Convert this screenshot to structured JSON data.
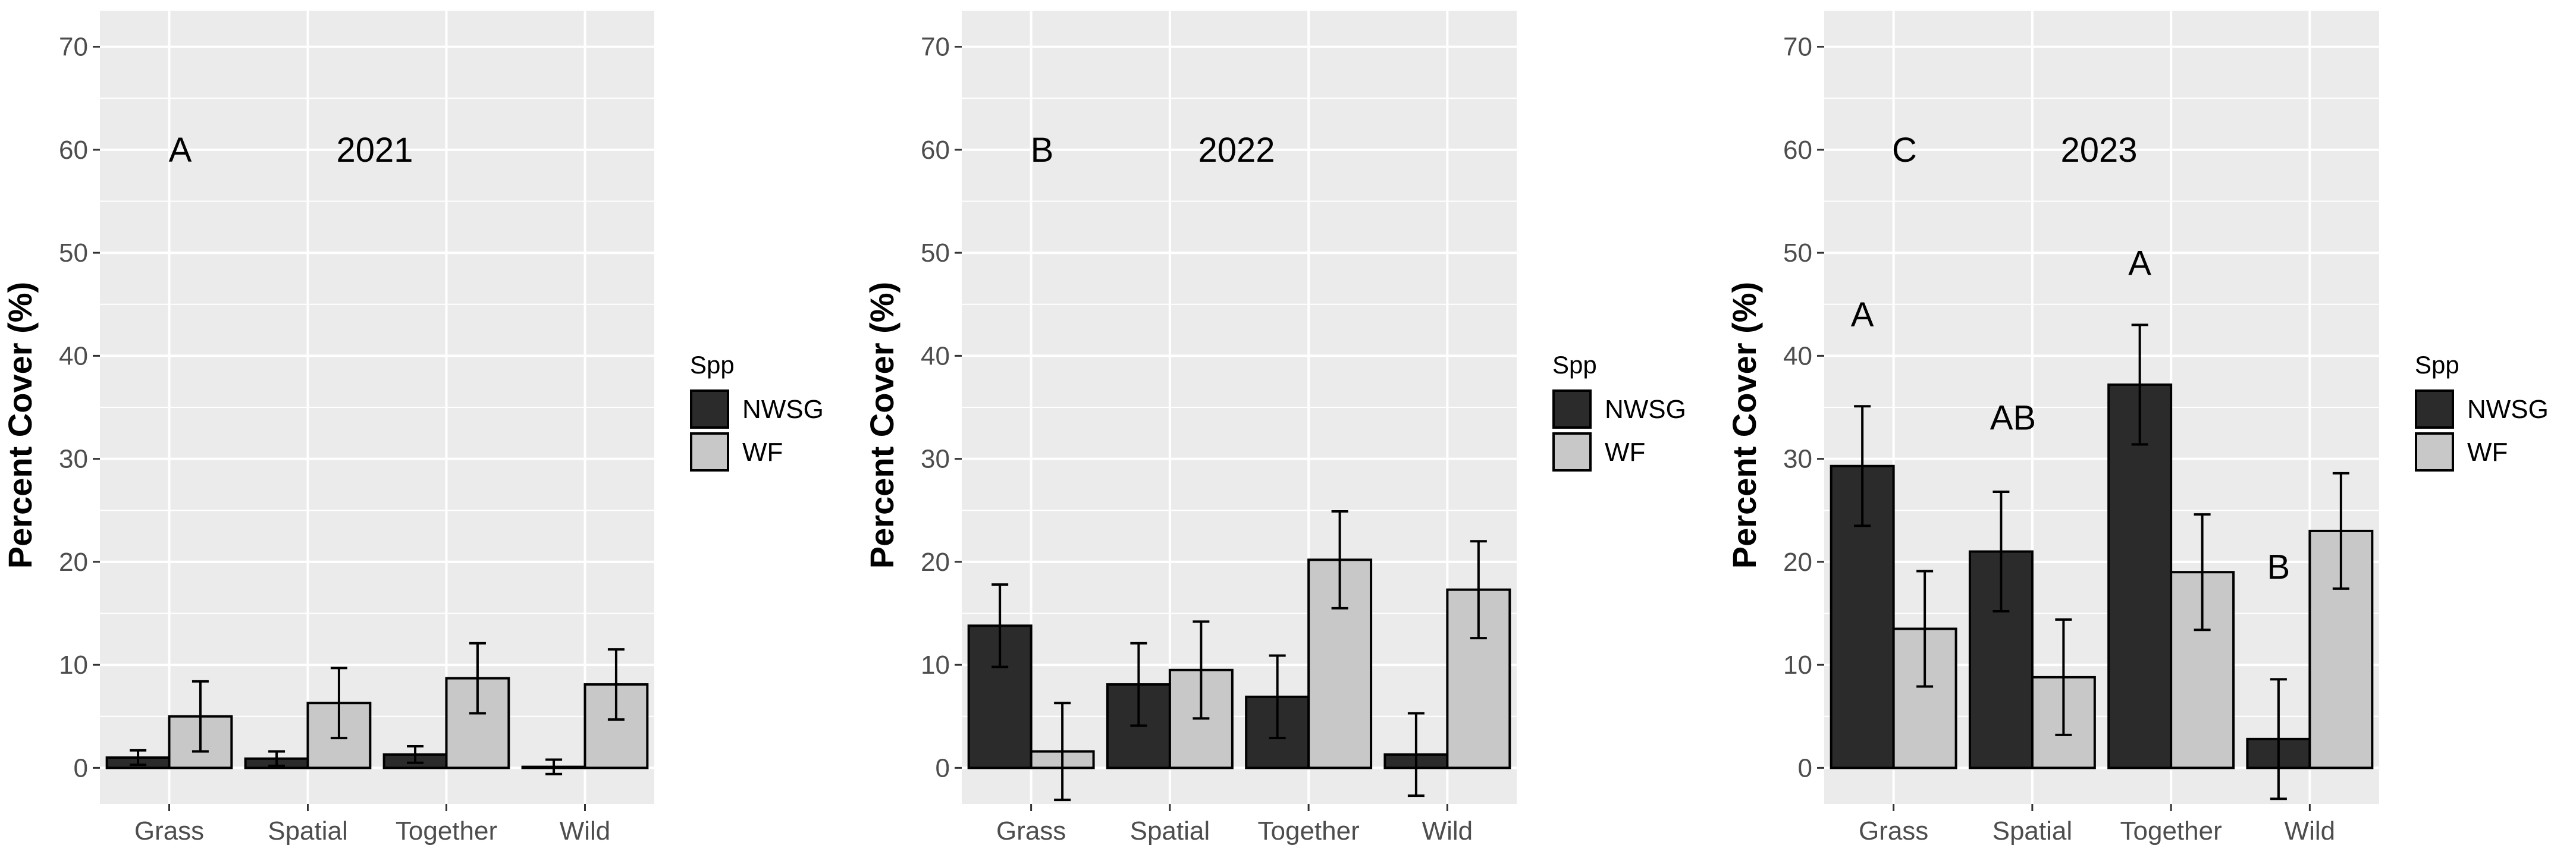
{
  "figure": {
    "legend_title": "Spp",
    "series_names": [
      "NWSG",
      "WF"
    ],
    "colors": {
      "NWSG": "#2b2b2b",
      "WF": "#c8c8c8",
      "panel_bg": "#ebebeb",
      "grid": "#ffffff",
      "text": "#000000",
      "tick_text": "#4d4d4d"
    }
  },
  "chart_data": [
    {
      "type": "bar",
      "panel_label": "A",
      "title": "2021",
      "xlabel": "",
      "ylabel": "Percent Cover (%)",
      "ylim": [
        -3.5,
        73.5
      ],
      "yticks": [
        0,
        10,
        20,
        30,
        40,
        50,
        60,
        70
      ],
      "categories": [
        "Grass",
        "Spatial",
        "Together",
        "Wild"
      ],
      "series": [
        {
          "name": "NWSG",
          "values": [
            1.0,
            0.9,
            1.3,
            0.1
          ],
          "errors": [
            0.7,
            0.7,
            0.8,
            0.7
          ]
        },
        {
          "name": "WF",
          "values": [
            5.0,
            6.3,
            8.7,
            8.1
          ],
          "errors": [
            3.4,
            3.4,
            3.4,
            3.4
          ]
        }
      ],
      "annotations": []
    },
    {
      "type": "bar",
      "panel_label": "B",
      "title": "2022",
      "xlabel": "",
      "ylabel": "Percent Cover (%)",
      "ylim": [
        -3.5,
        73.5
      ],
      "yticks": [
        0,
        10,
        20,
        30,
        40,
        50,
        60,
        70
      ],
      "categories": [
        "Grass",
        "Spatial",
        "Together",
        "Wild"
      ],
      "series": [
        {
          "name": "NWSG",
          "values": [
            13.8,
            8.1,
            6.9,
            1.3
          ],
          "errors": [
            4.0,
            4.0,
            4.0,
            4.0
          ]
        },
        {
          "name": "WF",
          "values": [
            1.6,
            9.5,
            20.2,
            17.3
          ],
          "errors": [
            4.7,
            4.7,
            4.7,
            4.7
          ]
        }
      ],
      "annotations": []
    },
    {
      "type": "bar",
      "panel_label": "C",
      "title": "2023",
      "xlabel": "",
      "ylabel": "Percent Cover (%)",
      "ylim": [
        -3.5,
        73.5
      ],
      "yticks": [
        0,
        10,
        20,
        30,
        40,
        50,
        60,
        70
      ],
      "categories": [
        "Grass",
        "Spatial",
        "Together",
        "Wild"
      ],
      "series": [
        {
          "name": "NWSG",
          "values": [
            29.3,
            21.0,
            37.2,
            2.8
          ],
          "errors": [
            5.8,
            5.8,
            5.8,
            5.8
          ]
        },
        {
          "name": "WF",
          "values": [
            13.5,
            8.8,
            19.0,
            23.0
          ],
          "errors": [
            5.6,
            5.6,
            5.6,
            5.6
          ]
        }
      ],
      "annotations": [
        {
          "text": "A",
          "category": "Grass",
          "y": 44
        },
        {
          "text": "AB",
          "category": "Spatial",
          "y": 34
        },
        {
          "text": "A",
          "category": "Together",
          "y": 49
        },
        {
          "text": "B",
          "category": "Wild",
          "y": 19.5
        }
      ]
    }
  ]
}
